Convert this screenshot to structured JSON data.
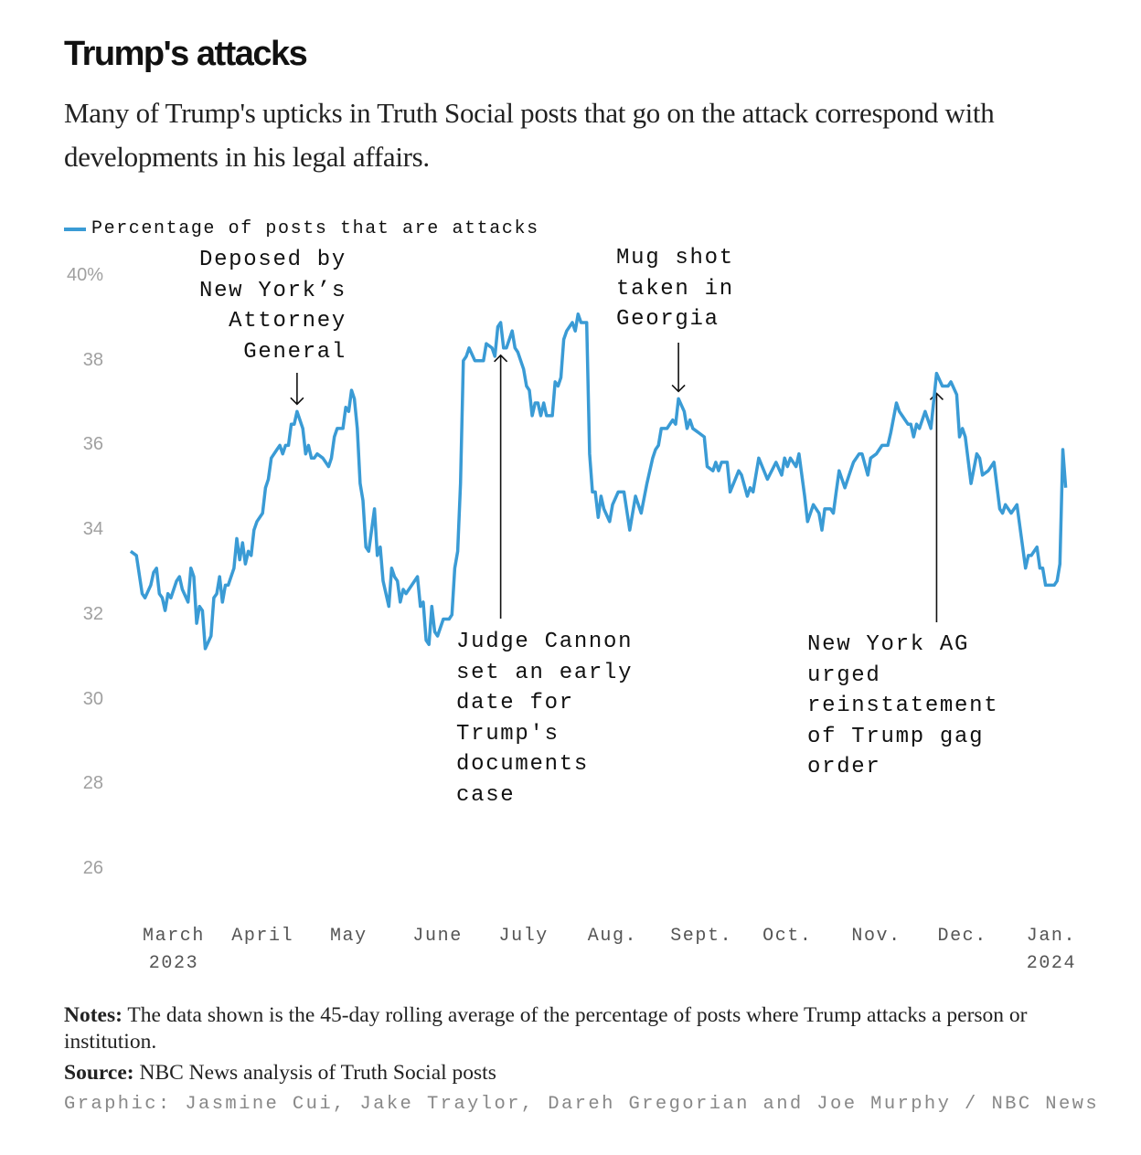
{
  "title": "Trump's attacks",
  "subtitle": "Many of Trump's upticks in Truth Social posts that go on the attack correspond with developments in his legal affairs.",
  "notes_label": "Notes:",
  "notes_text": " The data shown is the 45-day rolling average of the percentage of posts where Trump attacks a person or institution.",
  "source_label": "Source:",
  "source_text": " NBC News analysis of Truth Social posts",
  "credit": "Graphic: Jasmine Cui, Jake Traylor, Dareh Gregorian and Joe Murphy / NBC News",
  "colors": {
    "line": "#3a9bd5",
    "text": "#111111",
    "axis": "#a0a0a0"
  },
  "chart_data": {
    "type": "line",
    "title": "Trump's attacks",
    "xlabel": "",
    "ylabel": "",
    "legend": "Percentage of posts that are attacks",
    "legend_position": "top-left",
    "grid": false,
    "ylim": [
      26,
      40
    ],
    "y_ticks": [
      "40%",
      "38",
      "36",
      "34",
      "32",
      "30",
      "28",
      "26"
    ],
    "y_tick_values": [
      40,
      38,
      36,
      34,
      32,
      30,
      28,
      26
    ],
    "x_ticks": [
      {
        "label": "March",
        "sub": "2023",
        "day": 0
      },
      {
        "label": "April",
        "sub": "",
        "day": 31
      },
      {
        "label": "May",
        "sub": "",
        "day": 61
      },
      {
        "label": "June",
        "sub": "",
        "day": 92
      },
      {
        "label": "July",
        "sub": "",
        "day": 122
      },
      {
        "label": "Aug.",
        "sub": "",
        "day": 153
      },
      {
        "label": "Sept.",
        "sub": "",
        "day": 184
      },
      {
        "label": "Oct.",
        "sub": "",
        "day": 214
      },
      {
        "label": "Nov.",
        "sub": "",
        "day": 245
      },
      {
        "label": "Dec.",
        "sub": "",
        "day": 275
      },
      {
        "label": "Jan.",
        "sub": "2024",
        "day": 306
      }
    ],
    "series": [
      {
        "name": "Percentage of posts that are attacks",
        "points": [
          [
            -15,
            33.5
          ],
          [
            -13,
            33.4
          ],
          [
            -11,
            32.5
          ],
          [
            -10,
            32.4
          ],
          [
            -8,
            32.7
          ],
          [
            -7,
            33.0
          ],
          [
            -6,
            33.1
          ],
          [
            -5,
            32.5
          ],
          [
            -4,
            32.4
          ],
          [
            -3,
            32.1
          ],
          [
            -2,
            32.5
          ],
          [
            -1,
            32.4
          ],
          [
            1,
            32.8
          ],
          [
            2,
            32.9
          ],
          [
            3,
            32.6
          ],
          [
            5,
            32.3
          ],
          [
            6,
            33.1
          ],
          [
            7,
            32.9
          ],
          [
            8,
            31.8
          ],
          [
            9,
            32.2
          ],
          [
            10,
            32.1
          ],
          [
            11,
            31.2
          ],
          [
            13,
            31.5
          ],
          [
            14,
            32.4
          ],
          [
            15,
            32.5
          ],
          [
            16,
            32.9
          ],
          [
            17,
            32.3
          ],
          [
            18,
            32.7
          ],
          [
            19,
            32.7
          ],
          [
            21,
            33.1
          ],
          [
            22,
            33.8
          ],
          [
            23,
            33.3
          ],
          [
            24,
            33.7
          ],
          [
            25,
            33.2
          ],
          [
            26,
            33.5
          ],
          [
            27,
            33.4
          ],
          [
            28,
            34.0
          ],
          [
            29,
            34.2
          ],
          [
            31,
            34.4
          ],
          [
            32,
            35.0
          ],
          [
            33,
            35.2
          ],
          [
            34,
            35.7
          ],
          [
            36,
            35.9
          ],
          [
            37,
            36.0
          ],
          [
            38,
            35.8
          ],
          [
            39,
            36.0
          ],
          [
            40,
            36.0
          ],
          [
            41,
            36.5
          ],
          [
            42,
            36.5
          ],
          [
            43,
            36.8
          ],
          [
            45,
            36.4
          ],
          [
            46,
            35.8
          ],
          [
            47,
            36.0
          ],
          [
            48,
            35.7
          ],
          [
            49,
            35.7
          ],
          [
            50,
            35.8
          ],
          [
            52,
            35.7
          ],
          [
            54,
            35.5
          ],
          [
            55,
            35.7
          ],
          [
            56,
            36.2
          ],
          [
            57,
            36.4
          ],
          [
            59,
            36.4
          ],
          [
            60,
            36.9
          ],
          [
            61,
            36.8
          ],
          [
            62,
            37.3
          ],
          [
            63,
            37.1
          ],
          [
            64,
            36.4
          ],
          [
            65,
            35.1
          ],
          [
            66,
            34.7
          ],
          [
            67,
            33.6
          ],
          [
            68,
            33.5
          ],
          [
            70,
            34.5
          ],
          [
            71,
            33.4
          ],
          [
            72,
            33.6
          ],
          [
            73,
            32.8
          ],
          [
            75,
            32.2
          ],
          [
            76,
            33.1
          ],
          [
            77,
            32.9
          ],
          [
            78,
            32.8
          ],
          [
            79,
            32.3
          ],
          [
            80,
            32.6
          ],
          [
            81,
            32.5
          ],
          [
            85,
            32.9
          ],
          [
            86,
            32.2
          ],
          [
            87,
            32.3
          ],
          [
            88,
            31.4
          ],
          [
            89,
            31.3
          ],
          [
            90,
            32.2
          ],
          [
            91,
            31.6
          ],
          [
            92,
            31.5
          ],
          [
            94,
            31.9
          ],
          [
            96,
            31.9
          ],
          [
            97,
            32.0
          ],
          [
            98,
            33.1
          ],
          [
            99,
            33.5
          ],
          [
            100,
            35.1
          ],
          [
            101,
            38.0
          ],
          [
            102,
            38.1
          ],
          [
            103,
            38.3
          ],
          [
            105,
            38.0
          ],
          [
            108,
            38.0
          ],
          [
            109,
            38.4
          ],
          [
            111,
            38.3
          ],
          [
            112,
            38.1
          ],
          [
            113,
            38.8
          ],
          [
            114,
            38.9
          ],
          [
            115,
            38.3
          ],
          [
            116,
            38.3
          ],
          [
            118,
            38.7
          ],
          [
            119,
            38.3
          ],
          [
            120,
            38.2
          ],
          [
            122,
            37.8
          ],
          [
            123,
            37.4
          ],
          [
            124,
            37.3
          ],
          [
            125,
            36.7
          ],
          [
            126,
            37.0
          ],
          [
            127,
            37.0
          ],
          [
            128,
            36.7
          ],
          [
            129,
            37.0
          ],
          [
            130,
            36.7
          ],
          [
            132,
            36.7
          ],
          [
            133,
            37.5
          ],
          [
            134,
            37.4
          ],
          [
            135,
            37.6
          ],
          [
            136,
            38.5
          ],
          [
            137,
            38.7
          ],
          [
            139,
            38.9
          ],
          [
            140,
            38.7
          ],
          [
            141,
            39.1
          ],
          [
            142,
            38.9
          ],
          [
            143,
            38.9
          ],
          [
            144,
            38.9
          ],
          [
            145,
            35.8
          ],
          [
            146,
            34.9
          ],
          [
            147,
            34.9
          ],
          [
            148,
            34.3
          ],
          [
            149,
            34.8
          ],
          [
            150,
            34.5
          ],
          [
            152,
            34.2
          ],
          [
            153,
            34.6
          ],
          [
            155,
            34.9
          ],
          [
            157,
            34.9
          ],
          [
            159,
            34.0
          ],
          [
            161,
            34.8
          ],
          [
            163,
            34.4
          ],
          [
            165,
            35.1
          ],
          [
            167,
            35.7
          ],
          [
            168,
            35.9
          ],
          [
            169,
            36.0
          ],
          [
            170,
            36.4
          ],
          [
            172,
            36.4
          ],
          [
            173,
            36.5
          ],
          [
            174,
            36.6
          ],
          [
            175,
            36.5
          ],
          [
            176,
            37.1
          ],
          [
            178,
            36.8
          ],
          [
            179,
            36.4
          ],
          [
            180,
            36.6
          ],
          [
            181,
            36.4
          ],
          [
            183,
            36.3
          ],
          [
            185,
            36.2
          ],
          [
            186,
            35.5
          ],
          [
            188,
            35.4
          ],
          [
            189,
            35.6
          ],
          [
            190,
            35.4
          ],
          [
            191,
            35.6
          ],
          [
            193,
            35.6
          ],
          [
            194,
            34.9
          ],
          [
            197,
            35.4
          ],
          [
            198,
            35.3
          ],
          [
            200,
            34.8
          ],
          [
            201,
            35.0
          ],
          [
            202,
            34.9
          ],
          [
            204,
            35.7
          ],
          [
            207,
            35.2
          ],
          [
            210,
            35.6
          ],
          [
            212,
            35.3
          ],
          [
            213,
            35.7
          ],
          [
            214,
            35.5
          ],
          [
            215,
            35.7
          ],
          [
            217,
            35.5
          ],
          [
            218,
            35.8
          ],
          [
            220,
            34.8
          ],
          [
            221,
            34.2
          ],
          [
            223,
            34.6
          ],
          [
            225,
            34.4
          ],
          [
            226,
            34.0
          ],
          [
            227,
            34.5
          ],
          [
            229,
            34.5
          ],
          [
            230,
            34.4
          ],
          [
            231,
            34.9
          ],
          [
            232,
            35.4
          ],
          [
            234,
            35.0
          ],
          [
            236,
            35.4
          ],
          [
            237,
            35.6
          ],
          [
            239,
            35.8
          ],
          [
            240,
            35.8
          ],
          [
            242,
            35.3
          ],
          [
            243,
            35.7
          ],
          [
            245,
            35.8
          ],
          [
            246,
            35.9
          ],
          [
            247,
            36.0
          ],
          [
            249,
            36.0
          ],
          [
            250,
            36.3
          ],
          [
            252,
            37.0
          ],
          [
            253,
            36.8
          ],
          [
            254,
            36.7
          ],
          [
            256,
            36.5
          ],
          [
            257,
            36.5
          ],
          [
            258,
            36.2
          ],
          [
            259,
            36.5
          ],
          [
            260,
            36.4
          ],
          [
            262,
            36.8
          ],
          [
            264,
            36.4
          ],
          [
            266,
            37.7
          ],
          [
            268,
            37.4
          ],
          [
            269,
            37.4
          ],
          [
            270,
            37.4
          ],
          [
            271,
            37.5
          ],
          [
            273,
            37.2
          ],
          [
            274,
            36.2
          ],
          [
            275,
            36.4
          ],
          [
            276,
            36.2
          ],
          [
            278,
            35.1
          ],
          [
            280,
            35.8
          ],
          [
            281,
            35.7
          ],
          [
            282,
            35.3
          ],
          [
            284,
            35.4
          ],
          [
            286,
            35.6
          ],
          [
            288,
            34.5
          ],
          [
            289,
            34.4
          ],
          [
            290,
            34.6
          ],
          [
            292,
            34.4
          ],
          [
            294,
            34.6
          ],
          [
            297,
            33.1
          ],
          [
            298,
            33.4
          ],
          [
            299,
            33.4
          ],
          [
            301,
            33.6
          ],
          [
            302,
            33.1
          ],
          [
            303,
            33.1
          ],
          [
            304,
            32.7
          ],
          [
            307,
            32.7
          ],
          [
            308,
            32.8
          ],
          [
            309,
            33.2
          ],
          [
            310,
            35.9
          ],
          [
            311,
            35.0
          ]
        ]
      }
    ],
    "annotations": [
      {
        "text": "Deposed by\nNew York’s\nAttorney\nGeneral",
        "day": 43,
        "value": 36.8
      },
      {
        "text": "Judge Cannon\nset an early\ndate for\nTrump's\ndocuments\ncase",
        "day": 114,
        "value": 38.3
      },
      {
        "text": "Mug shot\ntaken in\nGeorgia",
        "day": 176,
        "value": 37.1
      },
      {
        "text": "New York AG\nurged\nreinstatement\nof Trump gag\norder",
        "day": 266,
        "value": 37.4
      }
    ]
  }
}
